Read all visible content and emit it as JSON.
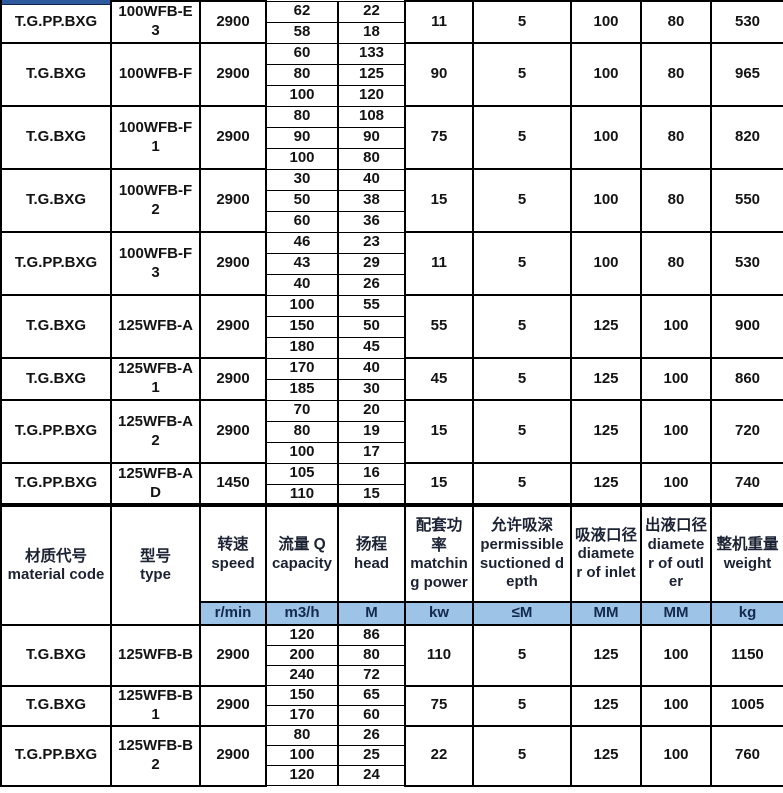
{
  "table": {
    "header": {
      "columns": [
        {
          "zh": "材质代号",
          "en": "material code"
        },
        {
          "zh": "型号",
          "en": "type"
        },
        {
          "zh": "转速",
          "en": "speed"
        },
        {
          "zh": "流量 Q",
          "en": "capacity"
        },
        {
          "zh": "扬程",
          "en": "head"
        },
        {
          "zh": "配套功率",
          "en": "matching power"
        },
        {
          "zh": "允许吸深",
          "en": "permissible suctioned depth"
        },
        {
          "zh": "吸液口径",
          "en": "diameter of inlet"
        },
        {
          "zh": "出液口径",
          "en": "diameter of outler"
        },
        {
          "zh": "整机重量",
          "en": "weight"
        }
      ],
      "units": [
        "r/min",
        "m3/h",
        "M",
        "kw",
        "≤M",
        "MM",
        "MM",
        "kg"
      ]
    },
    "rows_above_header": [
      {
        "material": "T.G.PP.BXG",
        "model": "100WFB-E3",
        "speed": "2900",
        "flow_head": [
          [
            "62",
            "22"
          ],
          [
            "58",
            "18"
          ]
        ],
        "power": "11",
        "depth": "5",
        "inlet": "100",
        "outlet": "80",
        "weight": "530"
      },
      {
        "material": "T.G.BXG",
        "model": "100WFB-F",
        "speed": "2900",
        "flow_head": [
          [
            "60",
            "133"
          ],
          [
            "80",
            "125"
          ],
          [
            "100",
            "120"
          ]
        ],
        "power": "90",
        "depth": "5",
        "inlet": "100",
        "outlet": "80",
        "weight": "965"
      },
      {
        "material": "T.G.BXG",
        "model": "100WFB-F1",
        "speed": "2900",
        "flow_head": [
          [
            "80",
            "108"
          ],
          [
            "90",
            "90"
          ],
          [
            "100",
            "80"
          ]
        ],
        "power": "75",
        "depth": "5",
        "inlet": "100",
        "outlet": "80",
        "weight": "820"
      },
      {
        "material": "T.G.BXG",
        "model": "100WFB-F2",
        "speed": "2900",
        "flow_head": [
          [
            "30",
            "40"
          ],
          [
            "50",
            "38"
          ],
          [
            "60",
            "36"
          ]
        ],
        "power": "15",
        "depth": "5",
        "inlet": "100",
        "outlet": "80",
        "weight": "550"
      },
      {
        "material": "T.G.PP.BXG",
        "model": "100WFB-F3",
        "speed": "2900",
        "flow_head": [
          [
            "46",
            "23"
          ],
          [
            "43",
            "29"
          ],
          [
            "40",
            "26"
          ]
        ],
        "power": "11",
        "depth": "5",
        "inlet": "100",
        "outlet": "80",
        "weight": "530"
      },
      {
        "material": "T.G.BXG",
        "model": "125WFB-A",
        "speed": "2900",
        "flow_head": [
          [
            "100",
            "55"
          ],
          [
            "150",
            "50"
          ],
          [
            "180",
            "45"
          ]
        ],
        "power": "55",
        "depth": "5",
        "inlet": "125",
        "outlet": "100",
        "weight": "900"
      },
      {
        "material": "T.G.BXG",
        "model": "125WFB-A1",
        "speed": "2900",
        "flow_head": [
          [
            "170",
            "40"
          ],
          [
            "185",
            "30"
          ]
        ],
        "power": "45",
        "depth": "5",
        "inlet": "125",
        "outlet": "100",
        "weight": "860"
      },
      {
        "material": "T.G.PP.BXG",
        "model": "125WFB-A2",
        "speed": "2900",
        "flow_head": [
          [
            "70",
            "20"
          ],
          [
            "80",
            "19"
          ],
          [
            "100",
            "17"
          ]
        ],
        "power": "15",
        "depth": "5",
        "inlet": "125",
        "outlet": "100",
        "weight": "720"
      },
      {
        "material": "T.G.PP.BXG",
        "model": "125WFB-AD",
        "speed": "1450",
        "flow_head": [
          [
            "105",
            "16"
          ],
          [
            "110",
            "15"
          ]
        ],
        "power": "15",
        "depth": "5",
        "inlet": "125",
        "outlet": "100",
        "weight": "740"
      }
    ],
    "rows_below_header": [
      {
        "material": "T.G.BXG",
        "model": "125WFB-B",
        "speed": "2900",
        "flow_head": [
          [
            "120",
            "86"
          ],
          [
            "200",
            "80"
          ],
          [
            "240",
            "72"
          ]
        ],
        "power": "110",
        "depth": "5",
        "inlet": "125",
        "outlet": "100",
        "weight": "1150"
      },
      {
        "material": "T.G.BXG",
        "model": "125WFB-B1",
        "speed": "2900",
        "flow_head": [
          [
            "150",
            "65"
          ],
          [
            "170",
            "60"
          ]
        ],
        "power": "75",
        "depth": "5",
        "inlet": "125",
        "outlet": "100",
        "weight": "1005"
      },
      {
        "material": "T.G.PP.BXG",
        "model": "125WFB-B2",
        "speed": "2900",
        "flow_head": [
          [
            "80",
            "26"
          ],
          [
            "100",
            "25"
          ],
          [
            "120",
            "24"
          ]
        ],
        "power": "22",
        "depth": "5",
        "inlet": "125",
        "outlet": "100",
        "weight": "760"
      }
    ]
  },
  "colors": {
    "grid_border": "#000000",
    "units_row_bg": "#9DC3E6",
    "units_text": "#14294E",
    "header_text": "#1B2233",
    "body_text": "#131313",
    "top_strip_blue": "#2E5B9E"
  }
}
